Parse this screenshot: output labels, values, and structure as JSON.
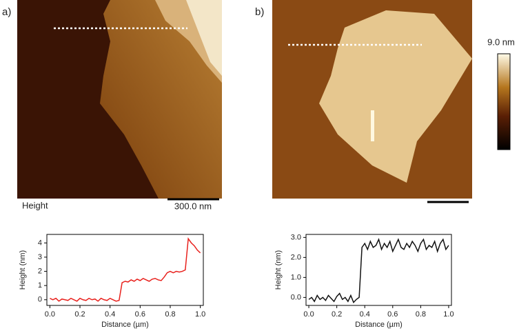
{
  "figure": {
    "panel_a": "a)",
    "panel_b": "b)",
    "height_label": "Height",
    "scale_bar": "300.0 nm",
    "colorbar_max": "9.0 nm"
  },
  "chart_data": [
    {
      "type": "line",
      "x_label": "Distance (µm)",
      "y_label": "Height (nm)",
      "x": [
        0,
        0.02,
        0.04,
        0.06,
        0.08,
        0.1,
        0.12,
        0.14,
        0.16,
        0.18,
        0.2,
        0.22,
        0.24,
        0.26,
        0.28,
        0.3,
        0.32,
        0.34,
        0.36,
        0.38,
        0.4,
        0.42,
        0.44,
        0.46,
        0.48,
        0.5,
        0.52,
        0.54,
        0.56,
        0.58,
        0.6,
        0.62,
        0.64,
        0.66,
        0.68,
        0.7,
        0.72,
        0.74,
        0.76,
        0.78,
        0.8,
        0.82,
        0.84,
        0.86,
        0.88,
        0.9,
        0.92,
        0.94,
        0.96,
        0.98,
        1.0
      ],
      "series": [
        {
          "color": "#e8201c",
          "values": [
            0.1,
            0.0,
            0.1,
            -0.1,
            0.05,
            0.0,
            -0.05,
            0.1,
            0.0,
            -0.1,
            0.1,
            0.0,
            -0.05,
            0.1,
            0.0,
            0.05,
            -0.1,
            0.1,
            0.0,
            -0.05,
            0.1,
            0.0,
            -0.1,
            -0.05,
            1.2,
            1.3,
            1.25,
            1.4,
            1.3,
            1.45,
            1.35,
            1.5,
            1.4,
            1.3,
            1.45,
            1.5,
            1.4,
            1.35,
            1.6,
            1.9,
            2.0,
            1.9,
            2.0,
            1.95,
            2.0,
            2.1,
            4.3,
            4.0,
            3.8,
            3.5,
            3.3
          ]
        }
      ],
      "xlim": [
        -0.02,
        1.02
      ],
      "ylim": [
        -0.4,
        4.6
      ],
      "xticks": [
        {
          "value": 0,
          "label": "0.0"
        },
        {
          "value": 0.2,
          "label": "0.2"
        },
        {
          "value": 0.4,
          "label": "0.4"
        },
        {
          "value": 0.6,
          "label": "0.6"
        },
        {
          "value": 0.8,
          "label": "0.8"
        },
        {
          "value": 1,
          "label": "1.0"
        }
      ],
      "yticks": [
        0,
        1,
        2,
        3,
        4
      ]
    },
    {
      "type": "line",
      "x_label": "Distance (µm)",
      "y_label": "Height (nm)",
      "x": [
        0,
        0.02,
        0.04,
        0.06,
        0.08,
        0.1,
        0.12,
        0.14,
        0.16,
        0.18,
        0.2,
        0.22,
        0.24,
        0.26,
        0.28,
        0.3,
        0.32,
        0.34,
        0.36,
        0.38,
        0.4,
        0.42,
        0.44,
        0.46,
        0.48,
        0.5,
        0.52,
        0.54,
        0.56,
        0.58,
        0.6,
        0.62,
        0.64,
        0.66,
        0.68,
        0.7,
        0.72,
        0.74,
        0.76,
        0.78,
        0.8,
        0.82,
        0.84,
        0.86,
        0.88,
        0.9,
        0.92,
        0.94,
        0.96,
        0.98,
        1.0
      ],
      "series": [
        {
          "color": "#111111",
          "values": [
            -0.1,
            0.0,
            -0.2,
            0.1,
            -0.1,
            0.0,
            -0.15,
            0.1,
            -0.05,
            -0.2,
            0.05,
            0.2,
            -0.1,
            0.0,
            -0.2,
            0.1,
            -0.25,
            -0.1,
            0.0,
            2.5,
            2.7,
            2.4,
            2.8,
            2.5,
            2.6,
            2.9,
            2.4,
            2.7,
            2.5,
            2.8,
            2.3,
            2.6,
            2.9,
            2.5,
            2.4,
            2.7,
            2.5,
            2.8,
            2.6,
            2.3,
            2.7,
            2.9,
            2.4,
            2.6,
            2.5,
            2.8,
            2.3,
            2.7,
            2.9,
            2.4,
            2.6
          ]
        }
      ],
      "xlim": [
        -0.02,
        1.02
      ],
      "ylim": [
        -0.4,
        3.15
      ],
      "xticks": [
        {
          "value": 0,
          "label": "0.0"
        },
        {
          "value": 0.2,
          "label": "0.2"
        },
        {
          "value": 0.4,
          "label": "0.4"
        },
        {
          "value": 0.6,
          "label": "0.6"
        },
        {
          "value": 0.8,
          "label": "0.8"
        },
        {
          "value": 1,
          "label": "1.0"
        }
      ],
      "yticks": [
        {
          "value": 0,
          "label": "0.0"
        },
        {
          "value": 1,
          "label": "1.0"
        },
        {
          "value": 2,
          "label": "2.0"
        },
        {
          "value": 3,
          "label": "3.0"
        }
      ]
    }
  ]
}
